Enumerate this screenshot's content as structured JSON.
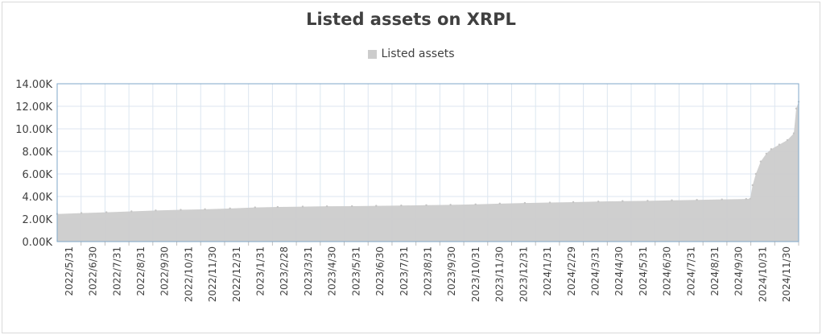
{
  "chart_data": {
    "type": "area",
    "title": "Listed assets on XRPL",
    "legend": {
      "position": "top",
      "entries": [
        "Listed assets"
      ]
    },
    "series": [
      {
        "name": "Listed assets",
        "color": "#cccccc",
        "points": [
          [
            "2022-05-31",
            2450
          ],
          [
            "2022-06-30",
            2530
          ],
          [
            "2022-07-31",
            2600
          ],
          [
            "2022-08-31",
            2680
          ],
          [
            "2022-09-30",
            2760
          ],
          [
            "2022-10-31",
            2820
          ],
          [
            "2022-11-30",
            2870
          ],
          [
            "2022-12-31",
            2940
          ],
          [
            "2023-01-31",
            3030
          ],
          [
            "2023-02-28",
            3070
          ],
          [
            "2023-03-31",
            3100
          ],
          [
            "2023-04-30",
            3130
          ],
          [
            "2023-05-31",
            3140
          ],
          [
            "2023-06-30",
            3170
          ],
          [
            "2023-07-31",
            3200
          ],
          [
            "2023-08-31",
            3230
          ],
          [
            "2023-09-30",
            3260
          ],
          [
            "2023-10-31",
            3300
          ],
          [
            "2023-11-30",
            3370
          ],
          [
            "2023-12-31",
            3420
          ],
          [
            "2024-01-31",
            3460
          ],
          [
            "2024-02-29",
            3500
          ],
          [
            "2024-03-31",
            3550
          ],
          [
            "2024-04-30",
            3590
          ],
          [
            "2024-05-31",
            3620
          ],
          [
            "2024-06-30",
            3660
          ],
          [
            "2024-07-31",
            3700
          ],
          [
            "2024-08-31",
            3740
          ],
          [
            "2024-09-30",
            3780
          ],
          [
            "2024-10-05",
            3800
          ],
          [
            "2024-10-08",
            5000
          ],
          [
            "2024-10-12",
            6000
          ],
          [
            "2024-10-18",
            7100
          ],
          [
            "2024-10-25",
            7800
          ],
          [
            "2024-10-31",
            8200
          ],
          [
            "2024-11-10",
            8600
          ],
          [
            "2024-11-20",
            9000
          ],
          [
            "2024-11-28",
            9600
          ],
          [
            "2024-12-01",
            11800
          ],
          [
            "2024-12-04",
            12400
          ]
        ]
      }
    ],
    "xlabels": [
      "2022/5/31",
      "2022/6/30",
      "2022/7/31",
      "2022/8/31",
      "2022/9/30",
      "2022/10/31",
      "2022/11/30",
      "2022/12/31",
      "2023/1/31",
      "2023/2/28",
      "2023/3/31",
      "2023/4/30",
      "2023/5/31",
      "2023/6/30",
      "2023/7/31",
      "2023/8/31",
      "2023/9/30",
      "2023/10/31",
      "2023/11/30",
      "2023/12/31",
      "2024/1/31",
      "2024/2/29",
      "2024/3/31",
      "2024/4/30",
      "2024/5/31",
      "2024/6/30",
      "2024/7/31",
      "2024/8/31",
      "2024/9/30",
      "2024/10/31",
      "2024/11/30"
    ],
    "ylim": [
      0,
      14000
    ],
    "yticks": [
      0,
      2000,
      4000,
      6000,
      8000,
      10000,
      12000,
      14000
    ],
    "ytick_labels": [
      "0.00K",
      "2.00K",
      "4.00K",
      "6.00K",
      "8.00K",
      "10.00K",
      "12.00K",
      "14.00K"
    ],
    "xlim": [
      "2022-05-31",
      "2024-12-04"
    ],
    "grid": true
  }
}
